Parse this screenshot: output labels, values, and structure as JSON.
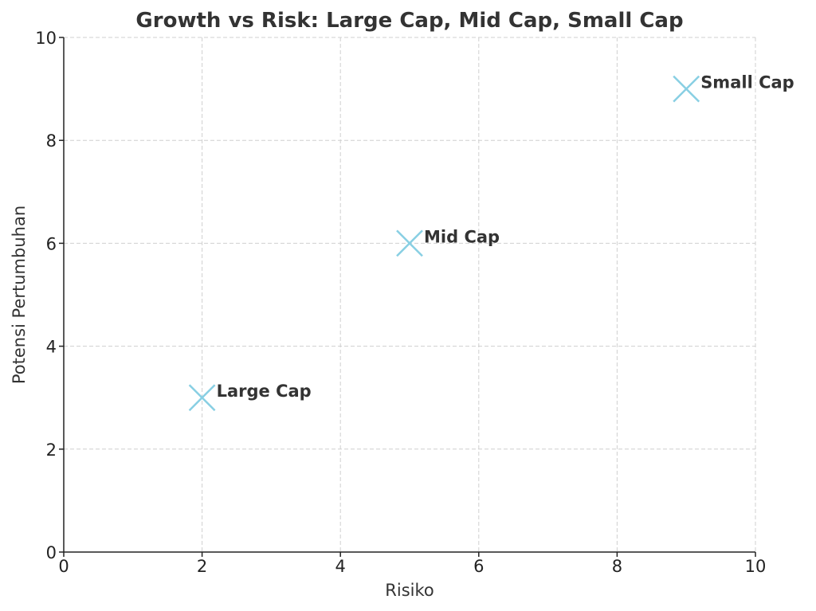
{
  "chart_data": {
    "type": "scatter",
    "title": "Growth vs Risk: Large Cap, Mid Cap, Small Cap",
    "xlabel": "Risiko",
    "ylabel": "Potensi Pertumbuhan",
    "xlim": [
      0,
      10
    ],
    "ylim": [
      0,
      10
    ],
    "xticks": [
      0,
      2,
      4,
      6,
      8,
      10
    ],
    "yticks": [
      0,
      2,
      4,
      6,
      8,
      10
    ],
    "grid": true,
    "marker": "x",
    "marker_color": "#88cfe3",
    "points": [
      {
        "label": "Large Cap",
        "x": 2,
        "y": 3
      },
      {
        "label": "Mid Cap",
        "x": 5,
        "y": 6
      },
      {
        "label": "Small Cap",
        "x": 9,
        "y": 9
      }
    ]
  }
}
